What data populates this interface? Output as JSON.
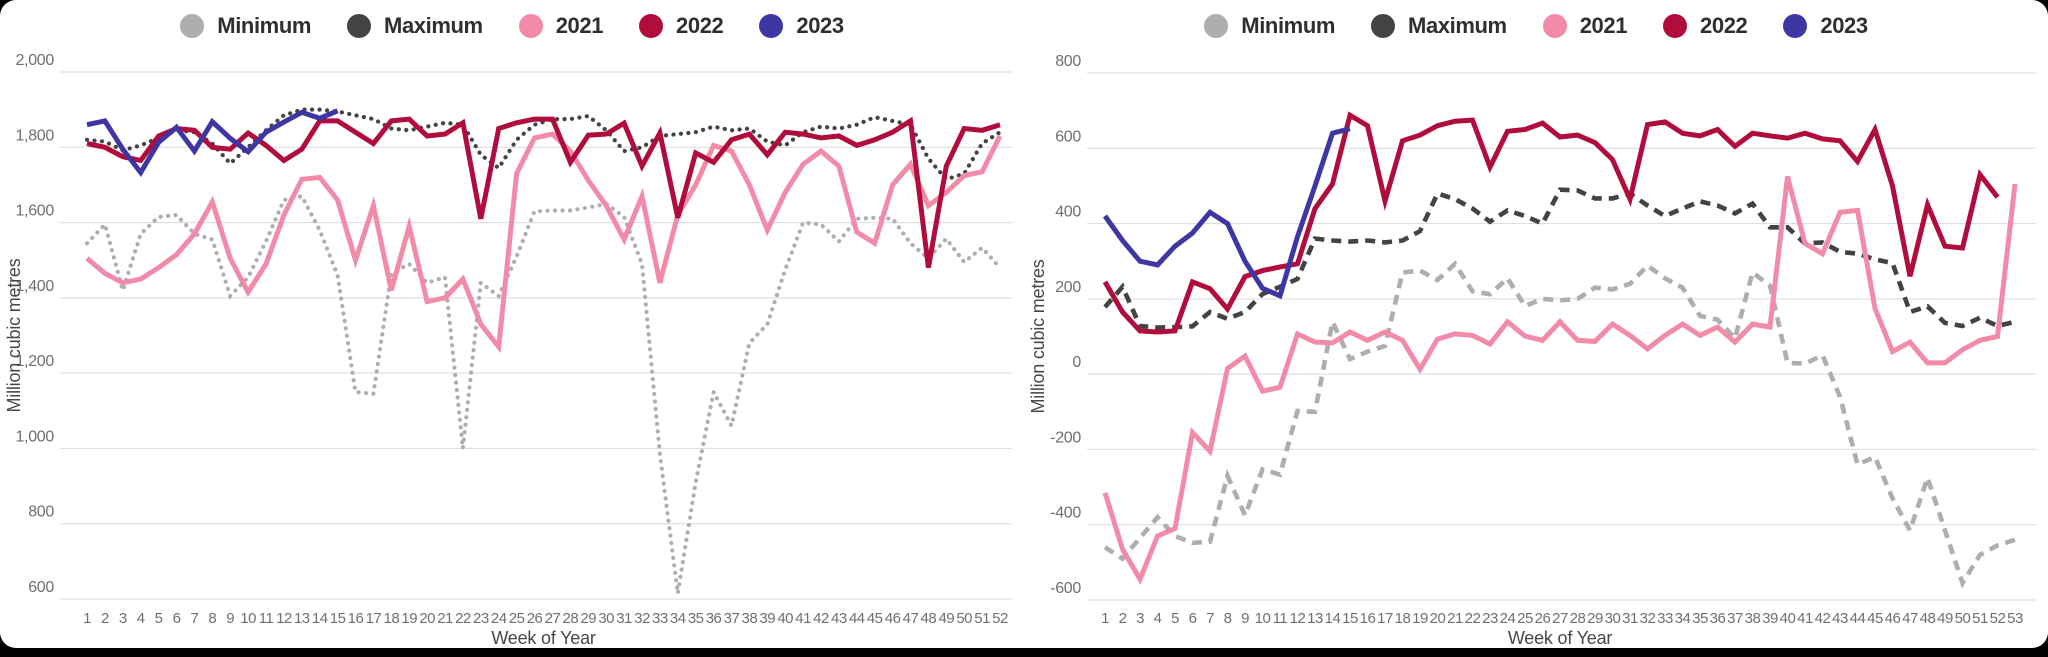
{
  "app": {
    "background": "#000000",
    "card_background": "#ffffff"
  },
  "chart_data": [
    {
      "type": "line",
      "title": "",
      "xlabel": "Week of Year",
      "ylabel": "Million cubic metres",
      "ylim": [
        600,
        2000
      ],
      "grid": true,
      "legend_position": "top",
      "ytick_values": [
        2000,
        1800,
        1600,
        1400,
        1200,
        1000,
        800,
        600
      ],
      "ytick_labels": [
        "2,000",
        "1,800",
        "1,600",
        "1,400",
        "1,200",
        "1,000",
        "800",
        "600"
      ],
      "x": [
        1,
        2,
        3,
        4,
        5,
        6,
        7,
        8,
        9,
        10,
        11,
        12,
        13,
        14,
        15,
        16,
        17,
        18,
        19,
        20,
        21,
        22,
        23,
        24,
        25,
        26,
        27,
        28,
        29,
        30,
        31,
        32,
        33,
        34,
        35,
        36,
        37,
        38,
        39,
        40,
        41,
        42,
        43,
        44,
        45,
        46,
        47,
        48,
        49,
        50,
        51,
        52
      ],
      "series": [
        {
          "name": "Minimum",
          "color": "#aeaeae",
          "line_style": "dotted",
          "values": [
            1545,
            1595,
            1420,
            1570,
            1615,
            1620,
            1570,
            1555,
            1405,
            1455,
            1550,
            1660,
            1670,
            1580,
            1460,
            1150,
            1145,
            1465,
            1490,
            1440,
            1455,
            1000,
            1440,
            1405,
            1510,
            1630,
            1632,
            1632,
            1640,
            1650,
            1615,
            1490,
            985,
            615,
            910,
            1150,
            1060,
            1280,
            1330,
            1475,
            1600,
            1595,
            1550,
            1610,
            1613,
            1610,
            1545,
            1505,
            1557,
            1495,
            1533,
            1480
          ]
        },
        {
          "name": "Maximum",
          "color": "#434343",
          "line_style": "dotted",
          "values": [
            1820,
            1815,
            1792,
            1805,
            1825,
            1845,
            1840,
            1810,
            1757,
            1800,
            1845,
            1885,
            1900,
            1900,
            1895,
            1885,
            1875,
            1850,
            1845,
            1855,
            1865,
            1860,
            1780,
            1745,
            1820,
            1860,
            1875,
            1875,
            1883,
            1845,
            1790,
            1800,
            1830,
            1835,
            1840,
            1855,
            1845,
            1850,
            1815,
            1805,
            1840,
            1855,
            1850,
            1860,
            1880,
            1870,
            1860,
            1770,
            1715,
            1730,
            1810,
            1840
          ]
        },
        {
          "name": "2021",
          "color": "#f28ba8",
          "line_style": "solid",
          "values": [
            1505,
            1465,
            1440,
            1450,
            1480,
            1515,
            1570,
            1655,
            1505,
            1415,
            1490,
            1620,
            1715,
            1720,
            1660,
            1500,
            1645,
            1420,
            1590,
            1390,
            1400,
            1450,
            1330,
            1270,
            1730,
            1825,
            1835,
            1790,
            1712,
            1645,
            1555,
            1670,
            1440,
            1620,
            1700,
            1805,
            1790,
            1700,
            1580,
            1680,
            1755,
            1790,
            1750,
            1575,
            1545,
            1700,
            1755,
            1645,
            1680,
            1725,
            1735,
            1830
          ]
        },
        {
          "name": "2022",
          "color": "#b00d3d",
          "line_style": "solid",
          "values": [
            1810,
            1800,
            1775,
            1765,
            1830,
            1850,
            1845,
            1800,
            1795,
            1838,
            1805,
            1765,
            1795,
            1870,
            1870,
            1840,
            1810,
            1870,
            1875,
            1830,
            1835,
            1865,
            1610,
            1850,
            1865,
            1875,
            1875,
            1760,
            1832,
            1835,
            1864,
            1750,
            1838,
            1613,
            1785,
            1760,
            1820,
            1835,
            1780,
            1840,
            1835,
            1825,
            1830,
            1805,
            1820,
            1840,
            1870,
            1480,
            1750,
            1850,
            1845,
            1860
          ]
        },
        {
          "name": "2023",
          "color": "#3e36a3",
          "line_style": "solid",
          "values": [
            1860,
            1870,
            1795,
            1733,
            1813,
            1853,
            1790,
            1868,
            1824,
            1788,
            1840,
            1867,
            1893,
            1877,
            1897
          ]
        }
      ]
    },
    {
      "type": "line",
      "title": "",
      "xlabel": "Week of Year",
      "ylabel": "Million cubic metres",
      "ylim": [
        -600,
        800
      ],
      "grid": true,
      "legend_position": "top",
      "ytick_values": [
        800,
        600,
        400,
        200,
        0,
        -200,
        -400,
        -600
      ],
      "ytick_labels": [
        "800",
        "600",
        "400",
        "200",
        "0",
        "-200",
        "-400",
        "-600"
      ],
      "x": [
        1,
        2,
        3,
        4,
        5,
        6,
        7,
        8,
        9,
        10,
        11,
        12,
        13,
        14,
        15,
        16,
        17,
        18,
        19,
        20,
        21,
        22,
        23,
        24,
        25,
        26,
        27,
        28,
        29,
        30,
        31,
        32,
        33,
        34,
        35,
        36,
        37,
        38,
        39,
        40,
        41,
        42,
        43,
        44,
        45,
        46,
        47,
        48,
        49,
        50,
        51,
        52,
        53
      ],
      "series": [
        {
          "name": "Minimum",
          "color": "#aeaeae",
          "line_style": "dashed",
          "values": [
            -460,
            -490,
            -435,
            -380,
            -430,
            -448,
            -445,
            -270,
            -375,
            -253,
            -267,
            -98,
            -100,
            139,
            40,
            60,
            75,
            270,
            275,
            250,
            293,
            220,
            212,
            255,
            181,
            200,
            196,
            200,
            230,
            225,
            240,
            288,
            255,
            230,
            155,
            145,
            95,
            270,
            235,
            30,
            28,
            50,
            -60,
            -240,
            -220,
            -330,
            -415,
            -275,
            -415,
            -555,
            -480,
            -455,
            -440
          ]
        },
        {
          "name": "Maximum",
          "color": "#434343",
          "line_style": "dashed",
          "values": [
            178,
            232,
            128,
            124,
            125,
            127,
            165,
            147,
            165,
            213,
            232,
            253,
            360,
            355,
            352,
            355,
            350,
            355,
            380,
            480,
            465,
            440,
            405,
            435,
            420,
            400,
            490,
            488,
            467,
            467,
            480,
            448,
            420,
            440,
            459,
            448,
            427,
            453,
            390,
            390,
            347,
            350,
            325,
            320,
            305,
            295,
            165,
            180,
            136,
            128,
            150,
            128,
            139
          ]
        },
        {
          "name": "2021",
          "color": "#f28ba8",
          "line_style": "solid",
          "values": [
            -315,
            -465,
            -545,
            -430,
            -410,
            -155,
            -205,
            15,
            48,
            -45,
            -35,
            107,
            85,
            83,
            112,
            90,
            112,
            90,
            13,
            93,
            107,
            103,
            80,
            139,
            101,
            90,
            139,
            90,
            87,
            133,
            103,
            67,
            103,
            133,
            103,
            125,
            85,
            133,
            125,
            525,
            347,
            320,
            430,
            435,
            175,
            60,
            85,
            30,
            30,
            65,
            90,
            100,
            505
          ]
        },
        {
          "name": "2022",
          "color": "#b00d3d",
          "line_style": "solid",
          "values": [
            245,
            165,
            115,
            112,
            115,
            245,
            227,
            173,
            259,
            275,
            285,
            293,
            440,
            505,
            688,
            660,
            460,
            620,
            635,
            660,
            672,
            675,
            550,
            645,
            650,
            667,
            630,
            635,
            615,
            570,
            465,
            663,
            670,
            640,
            633,
            650,
            605,
            640,
            633,
            627,
            640,
            625,
            620,
            565,
            650,
            500,
            260,
            450,
            340,
            335,
            530,
            470
          ]
        },
        {
          "name": "2023",
          "color": "#3e36a3",
          "line_style": "solid",
          "values": [
            420,
            355,
            300,
            290,
            340,
            375,
            430,
            400,
            300,
            228,
            208,
            365,
            500,
            640,
            652
          ]
        }
      ]
    }
  ]
}
